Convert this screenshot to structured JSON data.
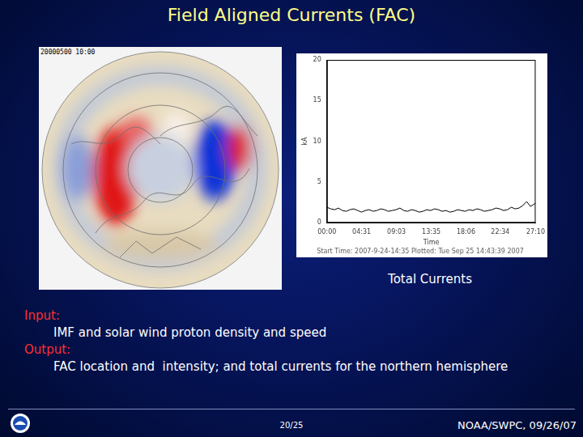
{
  "slide": {
    "title": "Field Aligned Currents (FAC)",
    "map_label": "20000500 10:00",
    "chart_caption": "Total Currents",
    "input_label": "Input:",
    "input_text": "IMF and solar wind proton density and speed",
    "output_label": "Output:",
    "output_text": "FAC location and  intensity; and total currents for the northern hemisphere",
    "page": "20/25",
    "footer": "NOAA/SWPC, 09/26/07"
  },
  "chart_data": {
    "type": "line",
    "subtitle": "Start Time: 2007-9-24-14:35 Plotted: Tue Sep 25 14:43:39 2007",
    "x_label": "Time",
    "y_label": "kA",
    "x": [
      0,
      30,
      60,
      90,
      120,
      150,
      180,
      210,
      240,
      270,
      300,
      330,
      360,
      390,
      420,
      450,
      480,
      510,
      540,
      570,
      600,
      630,
      660,
      690,
      720,
      750,
      780,
      810,
      840,
      870,
      900,
      930,
      960,
      990,
      1020,
      1050,
      1080,
      1110,
      1140,
      1170,
      1200,
      1230,
      1260,
      1290,
      1320,
      1350,
      1380,
      1410,
      1440,
      1470,
      1500,
      1530,
      1560,
      1590,
      1620,
      1630
    ],
    "values": [
      1.9,
      1.7,
      1.6,
      1.8,
      1.5,
      1.4,
      1.6,
      1.7,
      1.5,
      1.3,
      1.5,
      1.6,
      1.4,
      1.5,
      1.7,
      1.6,
      1.4,
      1.5,
      1.6,
      1.8,
      1.5,
      1.4,
      1.6,
      1.5,
      1.3,
      1.4,
      1.6,
      1.5,
      1.7,
      1.6,
      1.4,
      1.5,
      1.3,
      1.4,
      1.6,
      1.5,
      1.4,
      1.6,
      1.5,
      1.7,
      1.6,
      1.4,
      1.5,
      1.6,
      1.8,
      1.7,
      1.5,
      1.6,
      1.9,
      1.7,
      1.8,
      2.1,
      2.6,
      2.0,
      2.3,
      2.4
    ],
    "color": "#000000",
    "xlim": [
      0,
      1630
    ],
    "xticks": [
      {
        "value": 0,
        "label": "00:00"
      },
      {
        "value": 271,
        "label": "04:31"
      },
      {
        "value": 543,
        "label": "09:03"
      },
      {
        "value": 815,
        "label": "13:35"
      },
      {
        "value": 1086,
        "label": "18:06"
      },
      {
        "value": 1354,
        "label": "22:34"
      },
      {
        "value": 1630,
        "label": "27:10"
      }
    ],
    "ylim": [
      0,
      20
    ],
    "yticks": [
      0,
      5,
      10,
      15,
      20
    ],
    "grid": false
  }
}
